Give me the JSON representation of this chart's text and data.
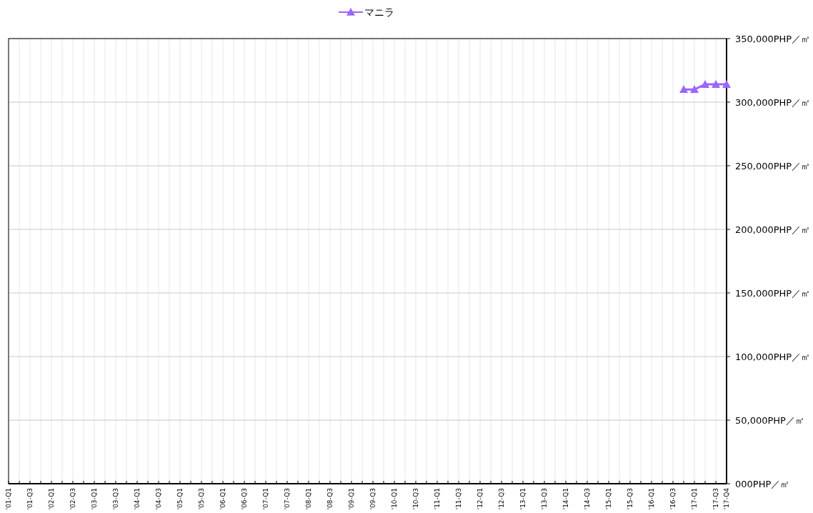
{
  "chart_data": {
    "type": "line",
    "categories": [
      "'01-Q1",
      null,
      "'01-Q3",
      null,
      "'02-Q1",
      null,
      "'02-Q3",
      null,
      "'03-Q1",
      null,
      "'03-Q3",
      null,
      "'04-Q1",
      null,
      "'04-Q3",
      null,
      "'05-Q1",
      null,
      "'05-Q3",
      null,
      "'06-Q1",
      null,
      "'06-Q3",
      null,
      "'07-Q1",
      null,
      "'07-Q3",
      null,
      "'08-Q1",
      null,
      "'08-Q3",
      null,
      "'09-Q1",
      null,
      "'09-Q3",
      null,
      "'10-Q1",
      null,
      "'10-Q3",
      null,
      "'11-Q1",
      null,
      "'11-Q3",
      null,
      "'12-Q1",
      null,
      "'12-Q3",
      null,
      "'13-Q1",
      null,
      "'13-Q3",
      null,
      "'14-Q1",
      null,
      "'14-Q3",
      null,
      "'15-Q1",
      null,
      "'15-Q3",
      null,
      "'16-Q1",
      null,
      "'16-Q3",
      null,
      "'17-Q1",
      null,
      "'17-Q3",
      "'17-Q4"
    ],
    "series": [
      {
        "name": "マニラ",
        "color": "#9966ff",
        "values": [
          null,
          null,
          null,
          null,
          null,
          null,
          null,
          null,
          null,
          null,
          null,
          null,
          null,
          null,
          null,
          null,
          null,
          null,
          null,
          null,
          null,
          null,
          null,
          null,
          null,
          null,
          null,
          null,
          null,
          null,
          null,
          null,
          null,
          null,
          null,
          null,
          null,
          null,
          null,
          null,
          null,
          null,
          null,
          null,
          null,
          null,
          null,
          null,
          null,
          null,
          null,
          null,
          null,
          null,
          null,
          null,
          null,
          null,
          null,
          null,
          null,
          null,
          null,
          310000,
          310000,
          314000,
          314000,
          314000
        ]
      }
    ],
    "ylim": [
      0,
      350000
    ],
    "yticks": [
      {
        "value": 0,
        "label": "000PHP／㎡"
      },
      {
        "value": 50000,
        "label": "50,000PHP／㎡"
      },
      {
        "value": 100000,
        "label": "100,000PHP／㎡"
      },
      {
        "value": 150000,
        "label": "150,000PHP／㎡"
      },
      {
        "value": 200000,
        "label": "200,000PHP／㎡"
      },
      {
        "value": 250000,
        "label": "250,000PHP／㎡"
      },
      {
        "value": 300000,
        "label": "300,000PHP／㎡"
      },
      {
        "value": 350000,
        "label": "350,000PHP／㎡"
      }
    ],
    "grid": true,
    "legend": "top",
    "marker": "triangle",
    "line_style": "solid"
  }
}
